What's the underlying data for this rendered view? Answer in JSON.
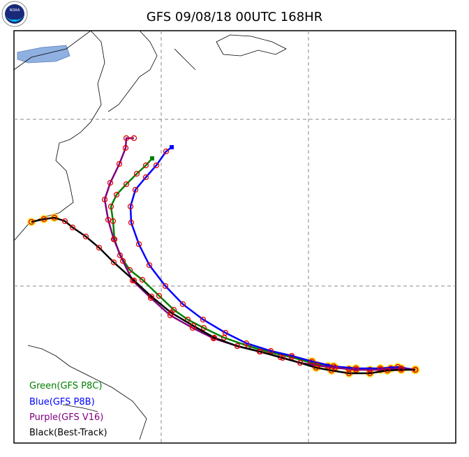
{
  "header": {
    "title": "GFS 09/08/18 00UTC 168HR",
    "logo": "NOAA"
  },
  "legend": {
    "items": [
      {
        "label": "Green(GFS P8C)",
        "color": "#008000"
      },
      {
        "label": "Blue(GFS P8B)",
        "color": "#0000ff"
      },
      {
        "label": "Purple(GFS V16)",
        "color": "#800080"
      },
      {
        "label": "Black(Best-Track)",
        "color": "#000000"
      }
    ]
  }
}
